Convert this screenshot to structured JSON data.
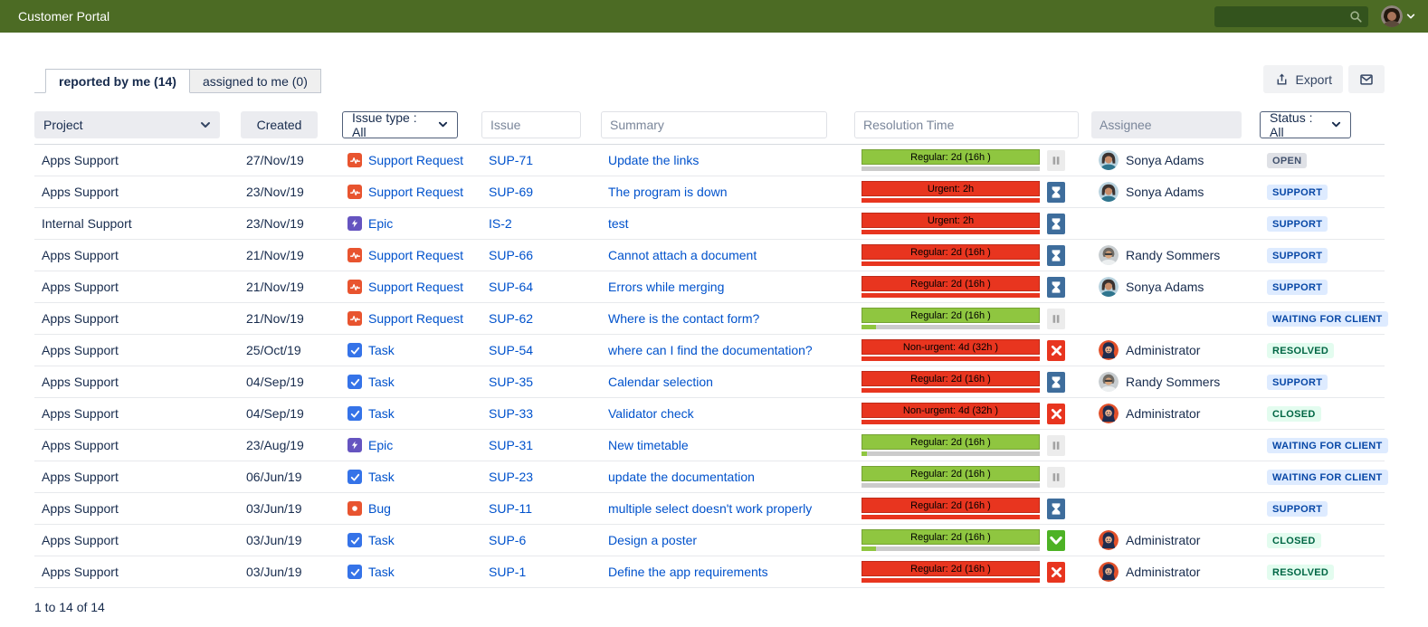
{
  "topbar": {
    "title": "Customer Portal"
  },
  "tabs": {
    "reported": "reported by me (14)",
    "assigned": "assigned to me (0)"
  },
  "toolbar": {
    "export_label": "Export"
  },
  "filters": {
    "project_label": "Project",
    "created_label": "Created",
    "issue_type_label": "Issue type : All",
    "issue_placeholder": "Issue",
    "summary_placeholder": "Summary",
    "resolution_placeholder": "Resolution Time",
    "assignee_placeholder": "Assignee",
    "status_label": "Status : All"
  },
  "colors": {
    "topbar_green": "#4c6b24",
    "sla_green": "#8fc640",
    "sla_red": "#e8351f",
    "link_blue": "#0052cc",
    "badge_blue_bg": "#deebff",
    "badge_blue_text": "#0747a6",
    "badge_green_bg": "#e3fcef",
    "badge_green_text": "#006644",
    "badge_gray_bg": "#dfe1e6",
    "badge_gray_text": "#42526e"
  },
  "table": {
    "rows": [
      {
        "project": "Apps Support",
        "created": "27/Nov/19",
        "type": "Support Request",
        "type_key": "support",
        "issue": "SUP-71",
        "summary": "Update the links",
        "sla": "Regular: 2d (16h )",
        "sla_color": "green",
        "progress_pct": 0,
        "progress_color": "green",
        "res_icon": "pause",
        "assignee": "Sonya Adams",
        "avatar": "sonya",
        "status": "OPEN",
        "status_key": "gray"
      },
      {
        "project": "Apps Support",
        "created": "23/Nov/19",
        "type": "Support Request",
        "type_key": "support",
        "issue": "SUP-69",
        "summary": "The program is down",
        "sla": "Urgent: 2h",
        "sla_color": "red",
        "progress_pct": 100,
        "progress_color": "red",
        "res_icon": "hourglass",
        "assignee": "Sonya Adams",
        "avatar": "sonya",
        "status": "SUPPORT",
        "status_key": "blue"
      },
      {
        "project": "Internal Support",
        "created": "23/Nov/19",
        "type": "Epic",
        "type_key": "epic",
        "issue": "IS-2",
        "summary": "test",
        "sla": "Urgent: 2h",
        "sla_color": "red",
        "progress_pct": 100,
        "progress_color": "red",
        "res_icon": "hourglass",
        "assignee": "",
        "avatar": "none",
        "status": "SUPPORT",
        "status_key": "blue"
      },
      {
        "project": "Apps Support",
        "created": "21/Nov/19",
        "type": "Support Request",
        "type_key": "support",
        "issue": "SUP-66",
        "summary": "Cannot attach a document",
        "sla": "Regular: 2d (16h )",
        "sla_color": "red",
        "progress_pct": 100,
        "progress_color": "red",
        "res_icon": "hourglass",
        "assignee": "Randy Sommers",
        "avatar": "randy",
        "status": "SUPPORT",
        "status_key": "blue"
      },
      {
        "project": "Apps Support",
        "created": "21/Nov/19",
        "type": "Support Request",
        "type_key": "support",
        "issue": "SUP-64",
        "summary": "Errors while merging",
        "sla": "Regular: 2d (16h )",
        "sla_color": "red",
        "progress_pct": 100,
        "progress_color": "red",
        "res_icon": "hourglass",
        "assignee": "Sonya Adams",
        "avatar": "sonya",
        "status": "SUPPORT",
        "status_key": "blue"
      },
      {
        "project": "Apps Support",
        "created": "21/Nov/19",
        "type": "Support Request",
        "type_key": "support",
        "issue": "SUP-62",
        "summary": "Where is the contact form?",
        "sla": "Regular: 2d (16h )",
        "sla_color": "green",
        "progress_pct": 8,
        "progress_color": "green",
        "res_icon": "pause",
        "assignee": "",
        "avatar": "none",
        "status": "WAITING FOR CLIENT",
        "status_key": "blue"
      },
      {
        "project": "Apps Support",
        "created": "25/Oct/19",
        "type": "Task",
        "type_key": "task",
        "issue": "SUP-54",
        "summary": "where can I find the documentation?",
        "sla": "Non-urgent: 4d (32h )",
        "sla_color": "red",
        "progress_pct": 100,
        "progress_color": "red",
        "res_icon": "x",
        "assignee": "Administrator",
        "avatar": "admin",
        "status": "RESOLVED",
        "status_key": "green"
      },
      {
        "project": "Apps Support",
        "created": "04/Sep/19",
        "type": "Task",
        "type_key": "task",
        "issue": "SUP-35",
        "summary": "Calendar selection",
        "sla": "Regular: 2d (16h )",
        "sla_color": "red",
        "progress_pct": 100,
        "progress_color": "red",
        "res_icon": "hourglass",
        "assignee": "Randy Sommers",
        "avatar": "randy",
        "status": "SUPPORT",
        "status_key": "blue"
      },
      {
        "project": "Apps Support",
        "created": "04/Sep/19",
        "type": "Task",
        "type_key": "task",
        "issue": "SUP-33",
        "summary": "Validator check",
        "sla": "Non-urgent: 4d (32h )",
        "sla_color": "red",
        "progress_pct": 100,
        "progress_color": "red",
        "res_icon": "x",
        "assignee": "Administrator",
        "avatar": "admin",
        "status": "CLOSED",
        "status_key": "green"
      },
      {
        "project": "Apps Support",
        "created": "23/Aug/19",
        "type": "Epic",
        "type_key": "epic",
        "issue": "SUP-31",
        "summary": "New timetable",
        "sla": "Regular: 2d (16h )",
        "sla_color": "green",
        "progress_pct": 3,
        "progress_color": "green",
        "res_icon": "pause",
        "assignee": "",
        "avatar": "none",
        "status": "WAITING FOR CLIENT",
        "status_key": "blue"
      },
      {
        "project": "Apps Support",
        "created": "06/Jun/19",
        "type": "Task",
        "type_key": "task",
        "issue": "SUP-23",
        "summary": "update the documentation",
        "sla": "Regular: 2d (16h )",
        "sla_color": "green",
        "progress_pct": 0,
        "progress_color": "green",
        "res_icon": "pause",
        "assignee": "",
        "avatar": "none",
        "status": "WAITING FOR CLIENT",
        "status_key": "blue"
      },
      {
        "project": "Apps Support",
        "created": "03/Jun/19",
        "type": "Bug",
        "type_key": "bug",
        "issue": "SUP-11",
        "summary": "multiple select doesn't work properly",
        "sla": "Regular: 2d (16h )",
        "sla_color": "red",
        "progress_pct": 100,
        "progress_color": "red",
        "res_icon": "hourglass",
        "assignee": "",
        "avatar": "none",
        "status": "SUPPORT",
        "status_key": "blue"
      },
      {
        "project": "Apps Support",
        "created": "03/Jun/19",
        "type": "Task",
        "type_key": "task",
        "issue": "SUP-6",
        "summary": "Design a poster",
        "sla": "Regular: 2d (16h )",
        "sla_color": "green",
        "progress_pct": 8,
        "progress_color": "green",
        "res_icon": "check",
        "assignee": "Administrator",
        "avatar": "admin",
        "status": "CLOSED",
        "status_key": "green"
      },
      {
        "project": "Apps Support",
        "created": "03/Jun/19",
        "type": "Task",
        "type_key": "task",
        "issue": "SUP-1",
        "summary": "Define the app requirements",
        "sla": "Regular: 2d (16h )",
        "sla_color": "red",
        "progress_pct": 100,
        "progress_color": "red",
        "res_icon": "x",
        "assignee": "Administrator",
        "avatar": "admin",
        "status": "RESOLVED",
        "status_key": "green"
      }
    ]
  },
  "footer": {
    "count": "1 to 14 of 14"
  }
}
